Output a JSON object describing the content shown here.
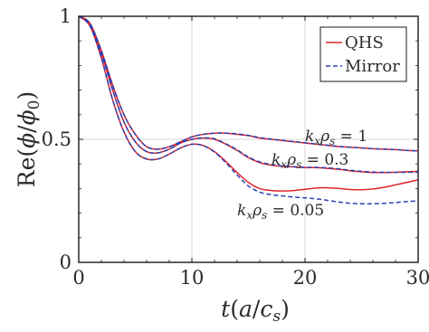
{
  "chart_data": {
    "type": "line",
    "xlabel": "t(a/c_s)",
    "ylabel": "Re(ϕ/ϕ0)",
    "xlim": [
      0,
      30
    ],
    "ylim": [
      0,
      1
    ],
    "xticks": [
      "0",
      "10",
      "20",
      "30"
    ],
    "yticks": [
      "0",
      "0.5",
      "1"
    ],
    "grid": true,
    "legend": {
      "placement": "top-right",
      "entries": [
        "QHS",
        "Mirror"
      ]
    },
    "colors": {
      "QHS": "#e0242b",
      "Mirror": "#2e3fb0"
    },
    "annotations": [
      {
        "text": "kxρs = 1",
        "x": 19.5,
        "y": 0.495
      },
      {
        "text": "kxρs = 0.3",
        "x": 17.0,
        "y": 0.405
      },
      {
        "text": "kxρs = 0.05",
        "x": 14.0,
        "y": 0.205
      }
    ],
    "series": [
      {
        "name": "QHS",
        "k": "1",
        "x": [
          0,
          1,
          2,
          3,
          4,
          5,
          6,
          7,
          8,
          9,
          10,
          11,
          12,
          13,
          14,
          15,
          16,
          17,
          18,
          19,
          20,
          21,
          22,
          23,
          24,
          25,
          26,
          27,
          28,
          29,
          30
        ],
        "y": [
          1.0,
          0.97,
          0.86,
          0.72,
          0.6,
          0.52,
          0.47,
          0.46,
          0.47,
          0.49,
          0.51,
          0.52,
          0.525,
          0.525,
          0.52,
          0.515,
          0.505,
          0.5,
          0.495,
          0.49,
          0.485,
          0.48,
          0.475,
          0.47,
          0.468,
          0.465,
          0.462,
          0.46,
          0.458,
          0.455,
          0.453
        ]
      },
      {
        "name": "Mirror",
        "k": "1",
        "x": [
          0,
          1,
          2,
          3,
          4,
          5,
          6,
          7,
          8,
          9,
          10,
          11,
          12,
          13,
          14,
          15,
          16,
          17,
          18,
          19,
          20,
          21,
          22,
          23,
          24,
          25,
          26,
          27,
          28,
          29,
          30
        ],
        "y": [
          1.0,
          0.97,
          0.86,
          0.72,
          0.6,
          0.52,
          0.47,
          0.46,
          0.47,
          0.49,
          0.51,
          0.52,
          0.525,
          0.525,
          0.522,
          0.516,
          0.507,
          0.501,
          0.496,
          0.491,
          0.486,
          0.481,
          0.476,
          0.471,
          0.468,
          0.465,
          0.462,
          0.46,
          0.458,
          0.455,
          0.453
        ]
      },
      {
        "name": "QHS",
        "k": "0.3",
        "x": [
          0,
          1,
          2,
          3,
          4,
          5,
          6,
          7,
          8,
          9,
          10,
          11,
          12,
          13,
          14,
          15,
          16,
          17,
          18,
          19,
          20,
          21,
          22,
          23,
          24,
          25,
          26,
          27,
          28,
          29,
          30
        ],
        "y": [
          1.0,
          0.97,
          0.85,
          0.7,
          0.57,
          0.49,
          0.45,
          0.445,
          0.46,
          0.485,
          0.5,
          0.505,
          0.5,
          0.48,
          0.455,
          0.425,
          0.405,
          0.395,
          0.39,
          0.388,
          0.385,
          0.385,
          0.382,
          0.378,
          0.372,
          0.368,
          0.365,
          0.365,
          0.366,
          0.368,
          0.37
        ]
      },
      {
        "name": "Mirror",
        "k": "0.3",
        "x": [
          0,
          1,
          2,
          3,
          4,
          5,
          6,
          7,
          8,
          9,
          10,
          11,
          12,
          13,
          14,
          15,
          16,
          17,
          18,
          19,
          20,
          21,
          22,
          23,
          24,
          25,
          26,
          27,
          28,
          29,
          30
        ],
        "y": [
          1.0,
          0.97,
          0.85,
          0.7,
          0.57,
          0.49,
          0.45,
          0.445,
          0.46,
          0.485,
          0.5,
          0.506,
          0.502,
          0.482,
          0.457,
          0.428,
          0.408,
          0.398,
          0.392,
          0.389,
          0.386,
          0.386,
          0.384,
          0.38,
          0.374,
          0.37,
          0.367,
          0.366,
          0.366,
          0.366,
          0.367
        ]
      },
      {
        "name": "QHS",
        "k": "0.05",
        "x": [
          0,
          1,
          2,
          3,
          4,
          5,
          6,
          7,
          8,
          9,
          10,
          11,
          12,
          13,
          14,
          15,
          16,
          17,
          18,
          19,
          20,
          21,
          22,
          23,
          24,
          25,
          26,
          27,
          28,
          29,
          30
        ],
        "y": [
          1.0,
          0.96,
          0.83,
          0.66,
          0.53,
          0.45,
          0.42,
          0.42,
          0.44,
          0.465,
          0.48,
          0.475,
          0.45,
          0.41,
          0.365,
          0.325,
          0.3,
          0.292,
          0.29,
          0.292,
          0.297,
          0.302,
          0.303,
          0.3,
          0.296,
          0.295,
          0.298,
          0.305,
          0.315,
          0.325,
          0.335
        ]
      },
      {
        "name": "Mirror",
        "k": "0.05",
        "x": [
          0,
          1,
          2,
          3,
          4,
          5,
          6,
          7,
          8,
          9,
          10,
          11,
          12,
          13,
          14,
          15,
          16,
          17,
          18,
          19,
          20,
          21,
          22,
          23,
          24,
          25,
          26,
          27,
          28,
          29,
          30
        ],
        "y": [
          1.0,
          0.96,
          0.83,
          0.66,
          0.53,
          0.45,
          0.42,
          0.42,
          0.44,
          0.465,
          0.48,
          0.474,
          0.448,
          0.405,
          0.355,
          0.31,
          0.285,
          0.275,
          0.27,
          0.265,
          0.262,
          0.258,
          0.252,
          0.245,
          0.24,
          0.238,
          0.238,
          0.24,
          0.243,
          0.247,
          0.25
        ]
      }
    ]
  }
}
